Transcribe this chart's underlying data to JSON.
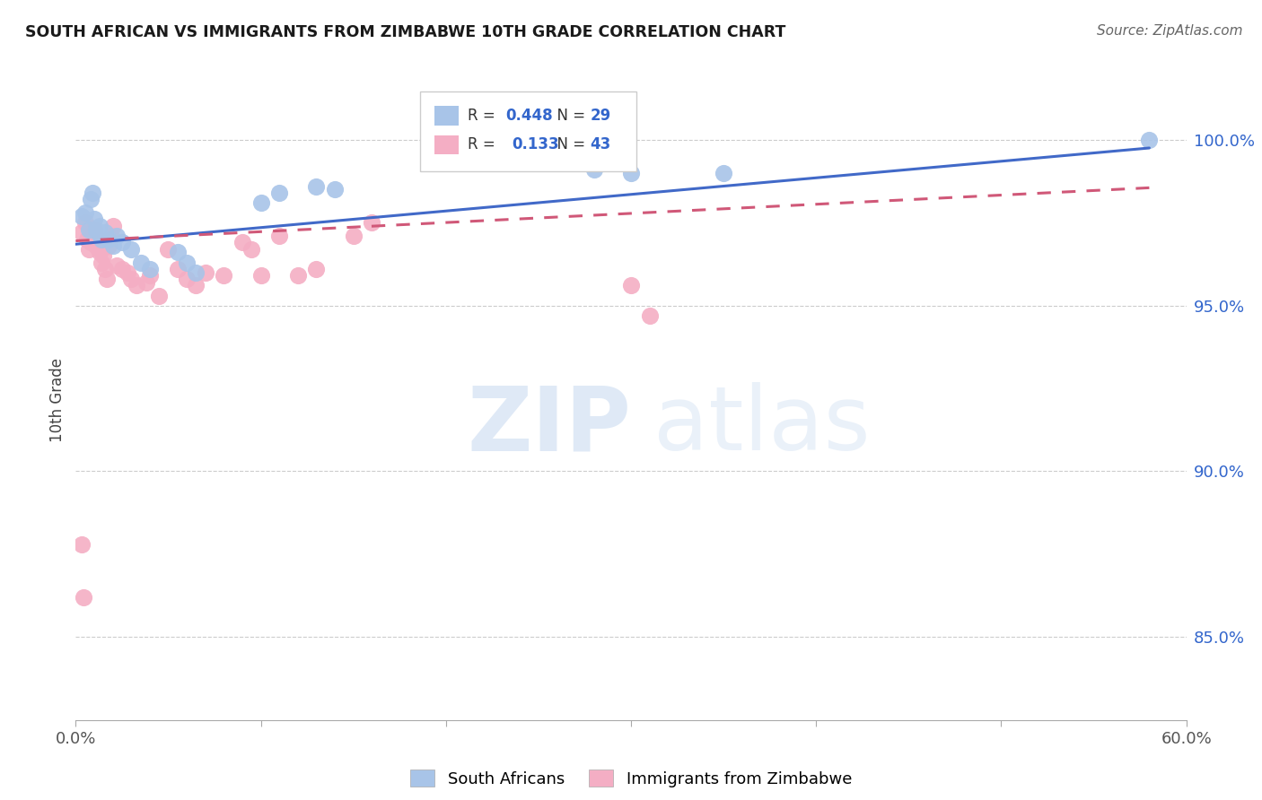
{
  "title": "SOUTH AFRICAN VS IMMIGRANTS FROM ZIMBABWE 10TH GRADE CORRELATION CHART",
  "source": "Source: ZipAtlas.com",
  "ylabel": "10th Grade",
  "y_ticks": [
    0.85,
    0.9,
    0.95,
    1.0
  ],
  "y_tick_labels": [
    "85.0%",
    "90.0%",
    "95.0%",
    "100.0%"
  ],
  "xlim": [
    0.0,
    0.6
  ],
  "ylim": [
    0.825,
    1.018
  ],
  "blue_r": 0.448,
  "blue_n": 29,
  "pink_r": 0.133,
  "pink_n": 43,
  "blue_color": "#a8c4e8",
  "pink_color": "#f4aec4",
  "blue_line_color": "#4169c8",
  "pink_line_color": "#d05878",
  "background_color": "#ffffff",
  "grid_color": "#cccccc",
  "blue_points_x": [
    0.003,
    0.005,
    0.007,
    0.008,
    0.009,
    0.01,
    0.011,
    0.012,
    0.013,
    0.014,
    0.016,
    0.018,
    0.02,
    0.022,
    0.025,
    0.03,
    0.035,
    0.04,
    0.055,
    0.06,
    0.065,
    0.1,
    0.11,
    0.13,
    0.14,
    0.28,
    0.3,
    0.35,
    0.58
  ],
  "blue_points_y": [
    0.977,
    0.978,
    0.973,
    0.982,
    0.984,
    0.976,
    0.973,
    0.972,
    0.974,
    0.97,
    0.972,
    0.97,
    0.968,
    0.971,
    0.969,
    0.967,
    0.963,
    0.961,
    0.966,
    0.963,
    0.96,
    0.981,
    0.984,
    0.986,
    0.985,
    0.991,
    0.99,
    0.99,
    1.0
  ],
  "pink_points_x": [
    0.003,
    0.005,
    0.006,
    0.007,
    0.008,
    0.009,
    0.01,
    0.011,
    0.012,
    0.013,
    0.014,
    0.015,
    0.016,
    0.017,
    0.018,
    0.019,
    0.02,
    0.022,
    0.025,
    0.028,
    0.03,
    0.033,
    0.038,
    0.04,
    0.045,
    0.05,
    0.055,
    0.06,
    0.065,
    0.07,
    0.08,
    0.09,
    0.095,
    0.1,
    0.11,
    0.12,
    0.13,
    0.15,
    0.16,
    0.3,
    0.31,
    0.003,
    0.004
  ],
  "pink_points_y": [
    0.972,
    0.975,
    0.97,
    0.967,
    0.969,
    0.971,
    0.973,
    0.968,
    0.97,
    0.966,
    0.963,
    0.965,
    0.961,
    0.958,
    0.968,
    0.971,
    0.974,
    0.962,
    0.961,
    0.96,
    0.958,
    0.956,
    0.957,
    0.959,
    0.953,
    0.967,
    0.961,
    0.958,
    0.956,
    0.96,
    0.959,
    0.969,
    0.967,
    0.959,
    0.971,
    0.959,
    0.961,
    0.971,
    0.975,
    0.956,
    0.947,
    0.878,
    0.862
  ],
  "blue_line_x": [
    0.0,
    0.58
  ],
  "blue_line_y": [
    0.9685,
    0.9975
  ],
  "pink_line_x": [
    0.0,
    0.58
  ],
  "pink_line_y": [
    0.9695,
    0.9855
  ]
}
